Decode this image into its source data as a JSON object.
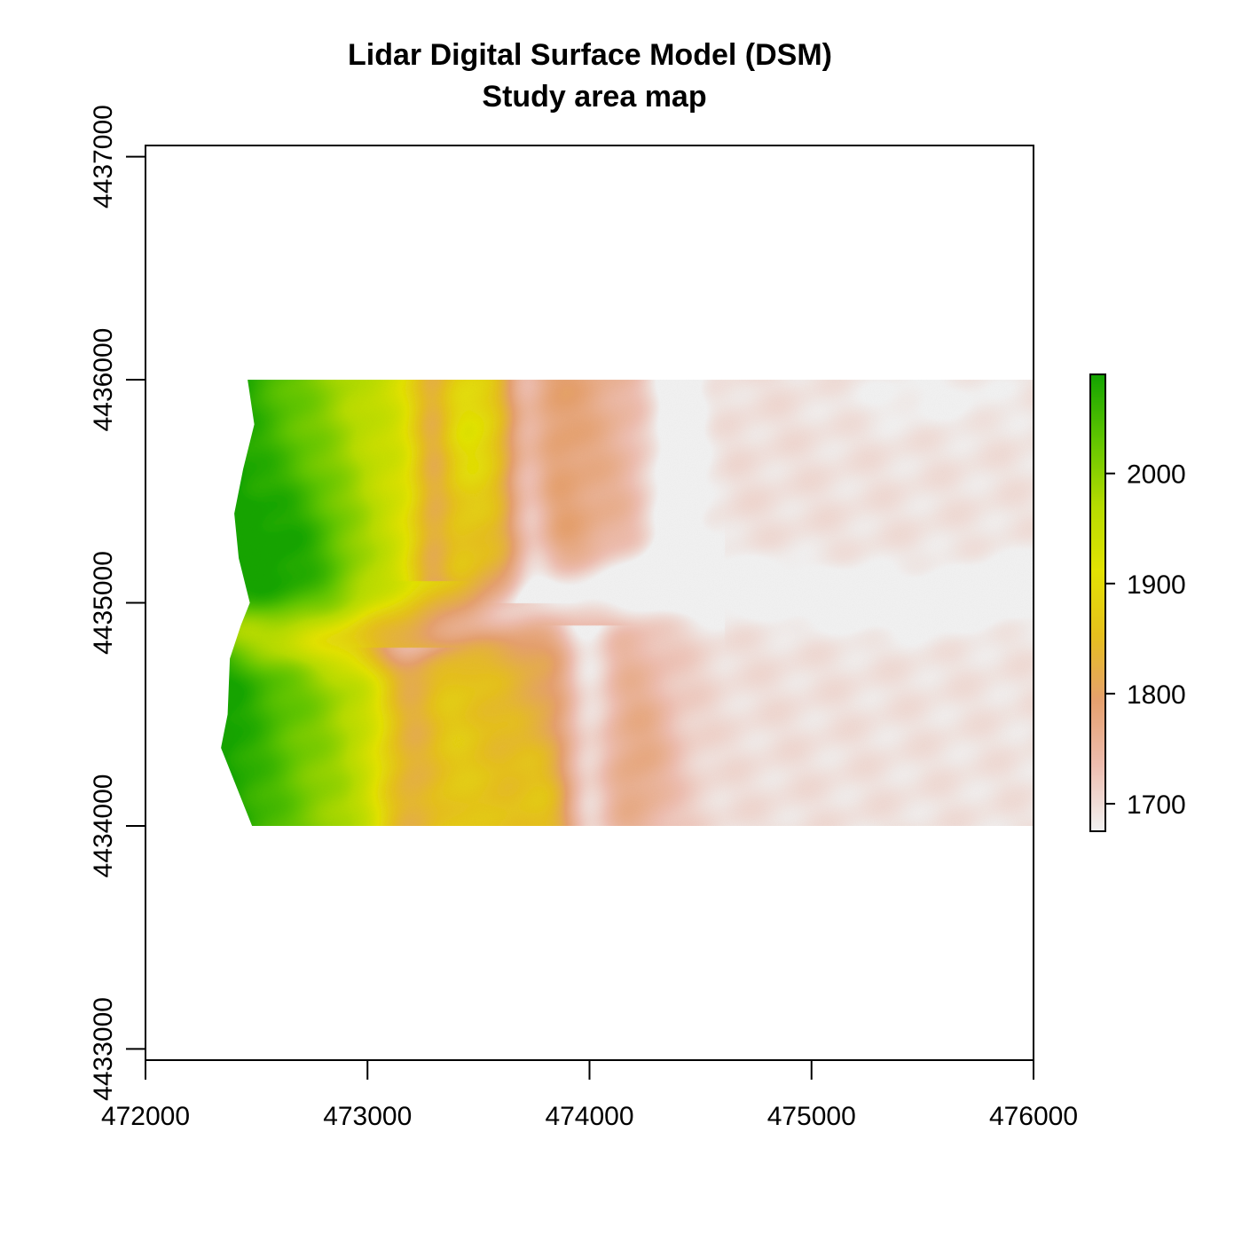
{
  "chart_data": {
    "type": "heatmap",
    "title": "Lidar Digital Surface Model (DSM)",
    "subtitle": "Study area map",
    "xlim": [
      472000,
      476000
    ],
    "ylim": [
      4432950,
      4437050
    ],
    "x_ticks": [
      472000,
      473000,
      474000,
      475000,
      476000
    ],
    "x_tick_labels": [
      "472000",
      "473000",
      "474000",
      "475000",
      "476000"
    ],
    "y_ticks": [
      4433000,
      4434000,
      4435000,
      4436000,
      4437000
    ],
    "y_tick_labels": [
      "4433000",
      "4434000",
      "4435000",
      "4436000",
      "4437000"
    ],
    "raster_extent": {
      "xmin": 472340,
      "xmax": 476000,
      "ymin": 4434000,
      "ymax": 4436000
    },
    "raster_west_edge": [
      [
        4436000,
        472460
      ],
      [
        4435800,
        472490
      ],
      [
        4435600,
        472440
      ],
      [
        4435400,
        472400
      ],
      [
        4435200,
        472420
      ],
      [
        4435000,
        472470
      ],
      [
        4434900,
        472430
      ],
      [
        4434750,
        472380
      ],
      [
        4434500,
        472370
      ],
      [
        4434350,
        472340
      ],
      [
        4434150,
        472420
      ],
      [
        4434000,
        472480
      ]
    ],
    "value_range": [
      1675,
      2090
    ],
    "legend": {
      "position": "right",
      "ticks": [
        1700,
        1800,
        1900,
        2000
      ],
      "tick_labels": [
        "1700",
        "1800",
        "1900",
        "2000"
      ]
    },
    "colors": [
      "#F2F2F2",
      "#EEBEB0",
      "#E6A16E",
      "#E6C01E",
      "#E3E302",
      "#B6DC00",
      "#62C600",
      "#14A500"
    ]
  }
}
